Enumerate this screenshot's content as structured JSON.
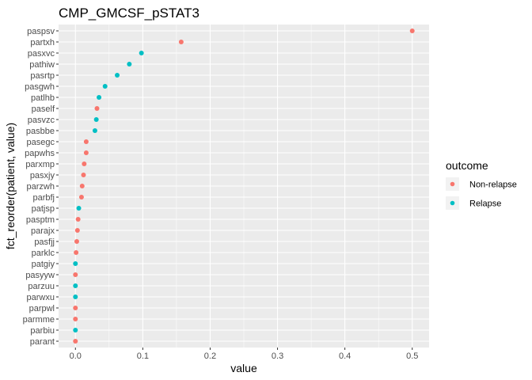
{
  "chart_data": {
    "type": "scatter",
    "title": "CMP_GMCSF_pSTAT3",
    "xlabel": "value",
    "ylabel": "fct_reorder(patient, value)",
    "xlim": [
      -0.025,
      0.525
    ],
    "x_ticks": [
      0.0,
      0.1,
      0.2,
      0.3,
      0.4,
      0.5
    ],
    "x_tick_labels": [
      "0.0",
      "0.1",
      "0.2",
      "0.3",
      "0.4",
      "0.5"
    ],
    "grid": true,
    "legend": {
      "title": "outcome",
      "placement": "right",
      "entries": [
        {
          "label": "Non-relapse",
          "color": "#F8766D"
        },
        {
          "label": "Relapse",
          "color": "#00BFC4"
        }
      ]
    },
    "points": [
      {
        "patient": "paspsv",
        "value": 0.5,
        "outcome": "Non-relapse"
      },
      {
        "patient": "partxh",
        "value": 0.157,
        "outcome": "Non-relapse"
      },
      {
        "patient": "pasxvc",
        "value": 0.098,
        "outcome": "Relapse"
      },
      {
        "patient": "pathiw",
        "value": 0.08,
        "outcome": "Relapse"
      },
      {
        "patient": "pasrtp",
        "value": 0.062,
        "outcome": "Relapse"
      },
      {
        "patient": "pasgwh",
        "value": 0.044,
        "outcome": "Relapse"
      },
      {
        "patient": "patlhb",
        "value": 0.035,
        "outcome": "Relapse"
      },
      {
        "patient": "paself",
        "value": 0.032,
        "outcome": "Non-relapse"
      },
      {
        "patient": "pasvzc",
        "value": 0.031,
        "outcome": "Relapse"
      },
      {
        "patient": "pasbbe",
        "value": 0.029,
        "outcome": "Relapse"
      },
      {
        "patient": "pasegc",
        "value": 0.016,
        "outcome": "Non-relapse"
      },
      {
        "patient": "papwhs",
        "value": 0.016,
        "outcome": "Non-relapse"
      },
      {
        "patient": "parxmp",
        "value": 0.013,
        "outcome": "Non-relapse"
      },
      {
        "patient": "pasxjy",
        "value": 0.012,
        "outcome": "Non-relapse"
      },
      {
        "patient": "parzwh",
        "value": 0.01,
        "outcome": "Non-relapse"
      },
      {
        "patient": "parbfj",
        "value": 0.009,
        "outcome": "Non-relapse"
      },
      {
        "patient": "patjsp",
        "value": 0.005,
        "outcome": "Relapse"
      },
      {
        "patient": "pasptm",
        "value": 0.004,
        "outcome": "Non-relapse"
      },
      {
        "patient": "parajx",
        "value": 0.003,
        "outcome": "Non-relapse"
      },
      {
        "patient": "pasfjj",
        "value": 0.002,
        "outcome": "Non-relapse"
      },
      {
        "patient": "parklc",
        "value": 0.001,
        "outcome": "Non-relapse"
      },
      {
        "patient": "patgiy",
        "value": 0.0,
        "outcome": "Relapse"
      },
      {
        "patient": "pasyyw",
        "value": 0.0,
        "outcome": "Non-relapse"
      },
      {
        "patient": "parzuu",
        "value": 0.0,
        "outcome": "Relapse"
      },
      {
        "patient": "parwxu",
        "value": 0.0,
        "outcome": "Relapse"
      },
      {
        "patient": "parpwl",
        "value": 0.0,
        "outcome": "Non-relapse"
      },
      {
        "patient": "parmme",
        "value": 0.0,
        "outcome": "Non-relapse"
      },
      {
        "patient": "parbiu",
        "value": 0.0,
        "outcome": "Relapse"
      },
      {
        "patient": "parant",
        "value": 0.0,
        "outcome": "Non-relapse"
      }
    ]
  }
}
